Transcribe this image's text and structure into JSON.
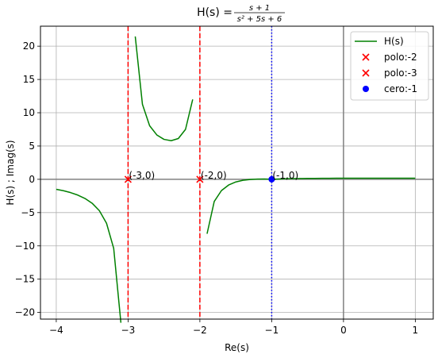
{
  "chart_data": {
    "type": "line",
    "title_prefix": "H(s) = ",
    "title_numerator": "s + 1",
    "title_denominator": "s² + 5s + 6",
    "xlabel": "Re(s)",
    "ylabel": "H(s) ; Imag(s)",
    "xlim": [
      -4.22,
      1.25
    ],
    "ylim": [
      -21.0,
      23.0
    ],
    "xticks": [
      -4,
      -3,
      -2,
      -1,
      0,
      1
    ],
    "yticks": [
      -20,
      -15,
      -10,
      -5,
      0,
      5,
      10,
      15,
      20
    ],
    "grid": true,
    "legend_position": "top-right",
    "series": [
      {
        "name": "H(s)",
        "color": "#008000",
        "segments": [
          [
            [
              -4.0,
              -1.5
            ],
            [
              -3.9,
              -1.71
            ],
            [
              -3.8,
              -2.0
            ],
            [
              -3.7,
              -2.37
            ],
            [
              -3.6,
              -2.88
            ],
            [
              -3.5,
              -3.6
            ],
            [
              -3.4,
              -4.71
            ],
            [
              -3.3,
              -6.6
            ],
            [
              -3.2,
              -10.38
            ],
            [
              -3.1,
              -21.54
            ]
          ],
          [
            [
              -2.9,
              21.46
            ],
            [
              -2.8,
              11.27
            ],
            [
              -2.7,
              8.05
            ],
            [
              -2.6,
              6.67
            ],
            [
              -2.5,
              6.0
            ],
            [
              -2.4,
              5.8
            ],
            [
              -2.3,
              6.13
            ],
            [
              -2.2,
              7.5
            ],
            [
              -2.1,
              12.0
            ]
          ],
          [
            [
              -1.9,
              -8.18
            ],
            [
              -1.8,
              -3.33
            ],
            [
              -1.7,
              -1.7
            ],
            [
              -1.6,
              -0.86
            ],
            [
              -1.5,
              -0.4
            ],
            [
              -1.4,
              -0.15
            ],
            [
              -1.3,
              -0.03
            ],
            [
              -1.2,
              0.03
            ],
            [
              -1.1,
              0.05
            ],
            [
              -1.0,
              0.0
            ],
            [
              -0.9,
              0.05
            ],
            [
              -0.8,
              0.09
            ],
            [
              -0.7,
              0.11
            ],
            [
              -0.6,
              0.12
            ],
            [
              -0.5,
              0.13
            ],
            [
              -0.4,
              0.14
            ],
            [
              -0.3,
              0.15
            ],
            [
              -0.2,
              0.15
            ],
            [
              -0.1,
              0.16
            ],
            [
              0.0,
              0.17
            ],
            [
              0.1,
              0.17
            ],
            [
              0.2,
              0.17
            ],
            [
              0.3,
              0.17
            ],
            [
              0.4,
              0.17
            ],
            [
              0.5,
              0.17
            ],
            [
              0.6,
              0.17
            ],
            [
              0.7,
              0.17
            ],
            [
              0.8,
              0.17
            ],
            [
              0.9,
              0.17
            ],
            [
              1.0,
              0.17
            ]
          ]
        ]
      }
    ],
    "markers": [
      {
        "name": "polo:-2",
        "x": -2,
        "y": 0,
        "marker": "x",
        "color": "#ff0000",
        "line_color": "#ff0000",
        "line_style": "dashed"
      },
      {
        "name": "polo:-3",
        "x": -3,
        "y": 0,
        "marker": "x",
        "color": "#ff0000",
        "line_color": "#ff0000",
        "line_style": "dashed"
      },
      {
        "name": "cero:-1",
        "x": -1,
        "y": 0,
        "marker": "o",
        "color": "#0000ff",
        "line_color": "#0000ff",
        "line_style": "dotted"
      }
    ],
    "annotations": [
      {
        "text": "(-3,0)",
        "x": -3,
        "y": 0
      },
      {
        "text": "(-2,0)",
        "x": -2,
        "y": 0
      },
      {
        "text": "(-1,0)",
        "x": -1,
        "y": 0
      }
    ]
  }
}
